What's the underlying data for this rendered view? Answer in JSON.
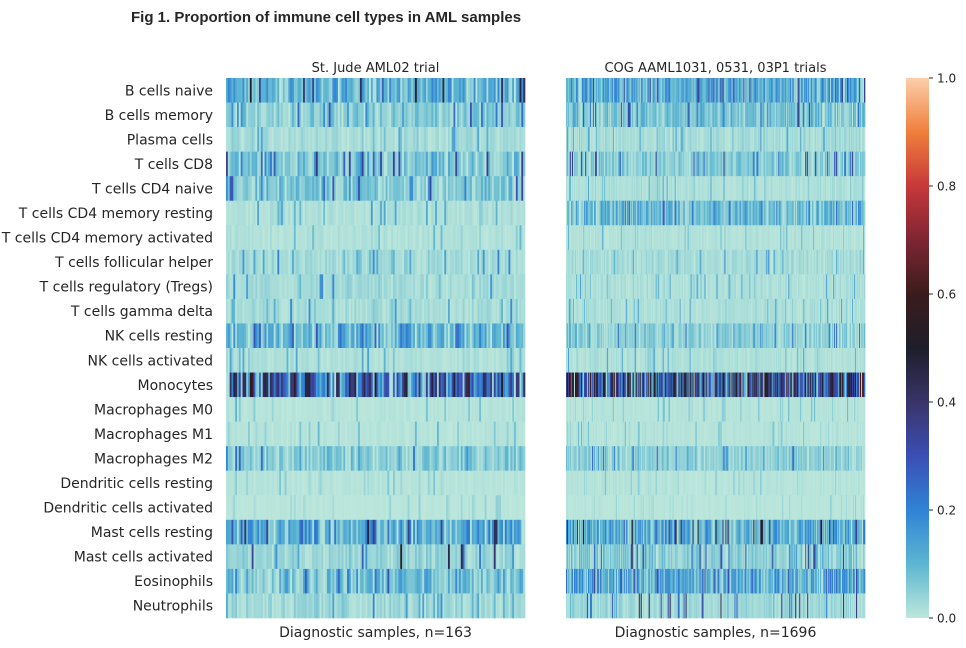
{
  "figure": {
    "title": "Fig 1. Proportion of immune cell types in AML samples"
  },
  "chart_data": {
    "type": "heatmap",
    "title": "Fig 1. Proportion of immune cell types in AML samples",
    "rows": [
      "B cells naive",
      "B cells memory",
      "Plasma cells",
      "T cells CD8",
      "T cells CD4 naive",
      "T cells CD4 memory resting",
      "T cells CD4 memory activated",
      "T cells follicular helper",
      "T cells regulatory (Tregs)",
      "T cells gamma delta",
      "NK cells resting",
      "NK cells activated",
      "Monocytes",
      "Macrophages M0",
      "Macrophages M1",
      "Macrophages M2",
      "Dendritic cells resting",
      "Dendritic cells activated",
      "Mast cells resting",
      "Mast cells activated",
      "Eosinophils",
      "Neutrophils"
    ],
    "colorbar": {
      "min": 0,
      "max": 1,
      "ticks": [
        "0.0",
        "0.2",
        "0.4",
        "0.6",
        "0.8",
        "1.0"
      ],
      "colormap": "icefire"
    },
    "panels": [
      {
        "title": "St. Jude AML02 trial",
        "xlabel": "Diagnostic samples, n=163",
        "n_samples": 163,
        "row_mean": [
          0.13,
          0.07,
          0.03,
          0.09,
          0.08,
          0.02,
          0.015,
          0.03,
          0.03,
          0.03,
          0.12,
          0.02,
          0.32,
          0.01,
          0.01,
          0.07,
          0.01,
          0.005,
          0.15,
          0.05,
          0.11,
          0.04
        ],
        "row_max": [
          0.55,
          0.3,
          0.15,
          0.4,
          0.35,
          0.15,
          0.1,
          0.2,
          0.2,
          0.2,
          0.3,
          0.15,
          0.65,
          0.1,
          0.1,
          0.3,
          0.08,
          0.05,
          0.55,
          0.6,
          0.3,
          0.2
        ]
      },
      {
        "title": "COG AAML1031, 0531, 03P1 trials",
        "xlabel": "Diagnostic samples, n=1696",
        "n_samples": 1696,
        "row_mean": [
          0.14,
          0.09,
          0.03,
          0.07,
          0.02,
          0.11,
          0.015,
          0.03,
          0.02,
          0.02,
          0.06,
          0.02,
          0.42,
          0.01,
          0.01,
          0.06,
          0.01,
          0.005,
          0.14,
          0.07,
          0.15,
          0.04
        ],
        "row_max": [
          0.4,
          0.35,
          0.15,
          0.4,
          0.15,
          0.3,
          0.1,
          0.2,
          0.15,
          0.15,
          0.25,
          0.15,
          0.7,
          0.1,
          0.1,
          0.3,
          0.08,
          0.05,
          0.6,
          0.4,
          0.35,
          0.5
        ]
      }
    ]
  }
}
